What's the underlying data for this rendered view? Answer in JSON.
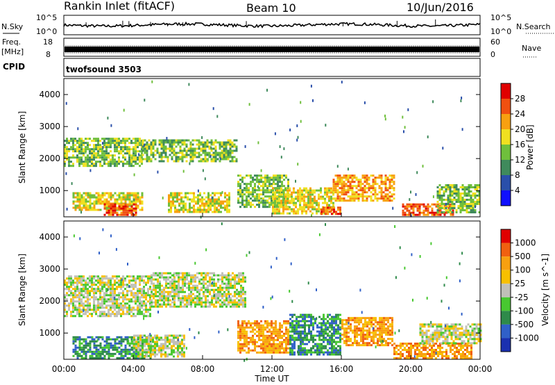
{
  "header": {
    "station": "Rankin Inlet (fitACF)",
    "beam": "Beam 10",
    "date": "10/Jun/2016"
  },
  "strips": {
    "nsky_label": "N.Sky",
    "nsearch_label": "N.Search",
    "nsky_ticks": [
      "10^5",
      "10^0"
    ],
    "nsearch_ticks": [
      "10^5",
      "10^0"
    ],
    "freq_label_1": "Freq.",
    "freq_label_2": "[MHz]",
    "freq_ticks": [
      "18",
      "8"
    ],
    "nave_label": "Nave",
    "nave_ticks": [
      "60",
      "0"
    ],
    "cpid_label": "CPID",
    "cpid_value": "twofsound 3503"
  },
  "colors": {
    "power": [
      "#1010ff",
      "#2a4faa",
      "#3f8a5c",
      "#6fbf3c",
      "#f0e020",
      "#f8a010",
      "#f05010",
      "#e00000"
    ],
    "velocity": [
      "#1a30b0",
      "#3060c8",
      "#2e8a4a",
      "#48c830",
      "#c0c0b8",
      "#f8c000",
      "#f8a010",
      "#f06010",
      "#e00000"
    ]
  },
  "chart_data": [
    {
      "type": "heatmap",
      "ylabel": "Slant Range [km]",
      "ylim": [
        180,
        4500
      ],
      "yticks": [
        "1000",
        "2000",
        "3000",
        "4000"
      ],
      "colorbar_label": "Power [dB]",
      "colorbar_ticks": [
        "4",
        "8",
        "12",
        "16",
        "20",
        "24",
        "28"
      ],
      "bands": [
        {
          "t0": 0.0,
          "t1": 4.5,
          "r0": 1750,
          "r1": 2650,
          "level": 3
        },
        {
          "t0": 4.5,
          "t1": 10.0,
          "r0": 1900,
          "r1": 2600,
          "level": 3
        },
        {
          "t0": 0.5,
          "t1": 4.5,
          "r0": 400,
          "r1": 950,
          "level": 4
        },
        {
          "t0": 2.3,
          "t1": 4.2,
          "r0": 250,
          "r1": 600,
          "level": 6
        },
        {
          "t0": 6.0,
          "t1": 9.5,
          "r0": 300,
          "r1": 950,
          "level": 4
        },
        {
          "t0": 10.0,
          "t1": 13.0,
          "r0": 500,
          "r1": 1500,
          "level": 3
        },
        {
          "t0": 12.0,
          "t1": 15.5,
          "r0": 300,
          "r1": 1100,
          "level": 4
        },
        {
          "t0": 14.8,
          "t1": 16.0,
          "r0": 250,
          "r1": 500,
          "level": 6
        },
        {
          "t0": 15.5,
          "t1": 19.0,
          "r0": 700,
          "r1": 1500,
          "level": 5
        },
        {
          "t0": 19.5,
          "t1": 22.5,
          "r0": 250,
          "r1": 600,
          "level": 6
        },
        {
          "t0": 21.5,
          "t1": 24.0,
          "r0": 300,
          "r1": 1200,
          "level": 3
        }
      ]
    },
    {
      "type": "heatmap",
      "ylabel": "Slant Range [km]",
      "ylim": [
        180,
        4500
      ],
      "yticks": [
        "1000",
        "2000",
        "3000",
        "4000"
      ],
      "xlabel": "Time UT",
      "xticks": [
        "00:00",
        "04:00",
        "08:00",
        "12:00",
        "16:00",
        "20:00",
        "00:00"
      ],
      "colorbar_label": "Velocity [m s^-1]",
      "colorbar_ticks": [
        "1000",
        "500",
        "100",
        "25",
        "-25",
        "-100",
        "-500",
        "-1000"
      ],
      "bands": [
        {
          "t0": 0.0,
          "t1": 5.0,
          "r0": 1500,
          "r1": 2800,
          "level": 4
        },
        {
          "t0": 5.0,
          "t1": 10.5,
          "r0": 1800,
          "r1": 2900,
          "level": 4
        },
        {
          "t0": 0.5,
          "t1": 5.0,
          "r0": 200,
          "r1": 900,
          "level": 2
        },
        {
          "t0": 4.0,
          "t1": 7.0,
          "r0": 250,
          "r1": 950,
          "level": 4
        },
        {
          "t0": 10.0,
          "t1": 13.0,
          "r0": 400,
          "r1": 1400,
          "level": 6
        },
        {
          "t0": 13.0,
          "t1": 16.0,
          "r0": 300,
          "r1": 1600,
          "level": 2
        },
        {
          "t0": 16.0,
          "t1": 19.0,
          "r0": 600,
          "r1": 1500,
          "level": 6
        },
        {
          "t0": 19.0,
          "t1": 23.5,
          "r0": 200,
          "r1": 700,
          "level": 6
        },
        {
          "t0": 20.5,
          "t1": 24.0,
          "r0": 700,
          "r1": 1300,
          "level": 4
        }
      ]
    }
  ]
}
